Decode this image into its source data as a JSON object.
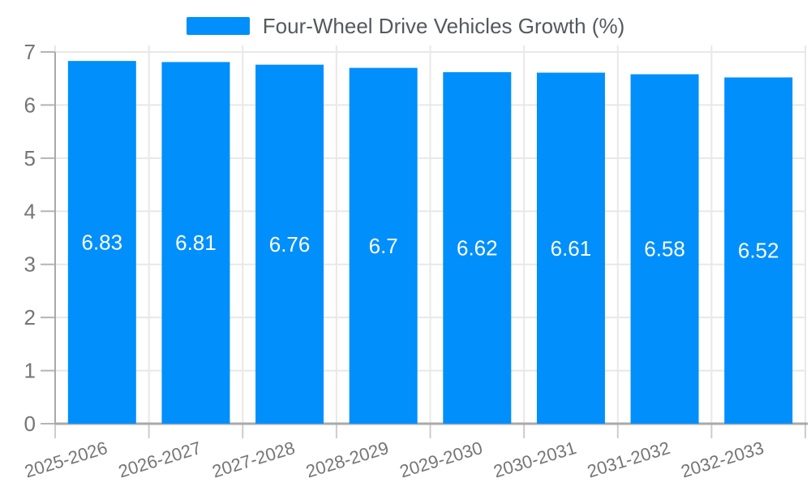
{
  "legend": {
    "label": "Four-Wheel Drive Vehicles Growth (%)"
  },
  "chart_data": {
    "type": "bar",
    "title": "Four-Wheel Drive Vehicles Growth (%)",
    "categories": [
      "2025-2026",
      "2026-2027",
      "2027-2028",
      "2028-2029",
      "2029-2030",
      "2030-2031",
      "2031-2032",
      "2032-2033"
    ],
    "values": [
      6.83,
      6.81,
      6.76,
      6.7,
      6.62,
      6.61,
      6.58,
      6.52
    ],
    "data_labels": [
      "6.83",
      "6.81",
      "6.76",
      "6.7",
      "6.62",
      "6.61",
      "6.58",
      "6.52"
    ],
    "xlabel": "",
    "ylabel": "",
    "ylim": [
      0,
      7
    ],
    "yticks": [
      0,
      1,
      2,
      3,
      4,
      5,
      6,
      7
    ],
    "grid": true,
    "legend_position": "top",
    "x_label_rotation": -17,
    "colors": {
      "bar": "#008FFB",
      "bar_label": "#ffffff",
      "grid": "#e8e8e8",
      "axis": "#a9a9a9",
      "tick": "#cccccc",
      "y_tick": "#b5b5b5",
      "axis_label": "#757575",
      "legend_text": "#54595e",
      "background": "#ffffff"
    }
  }
}
